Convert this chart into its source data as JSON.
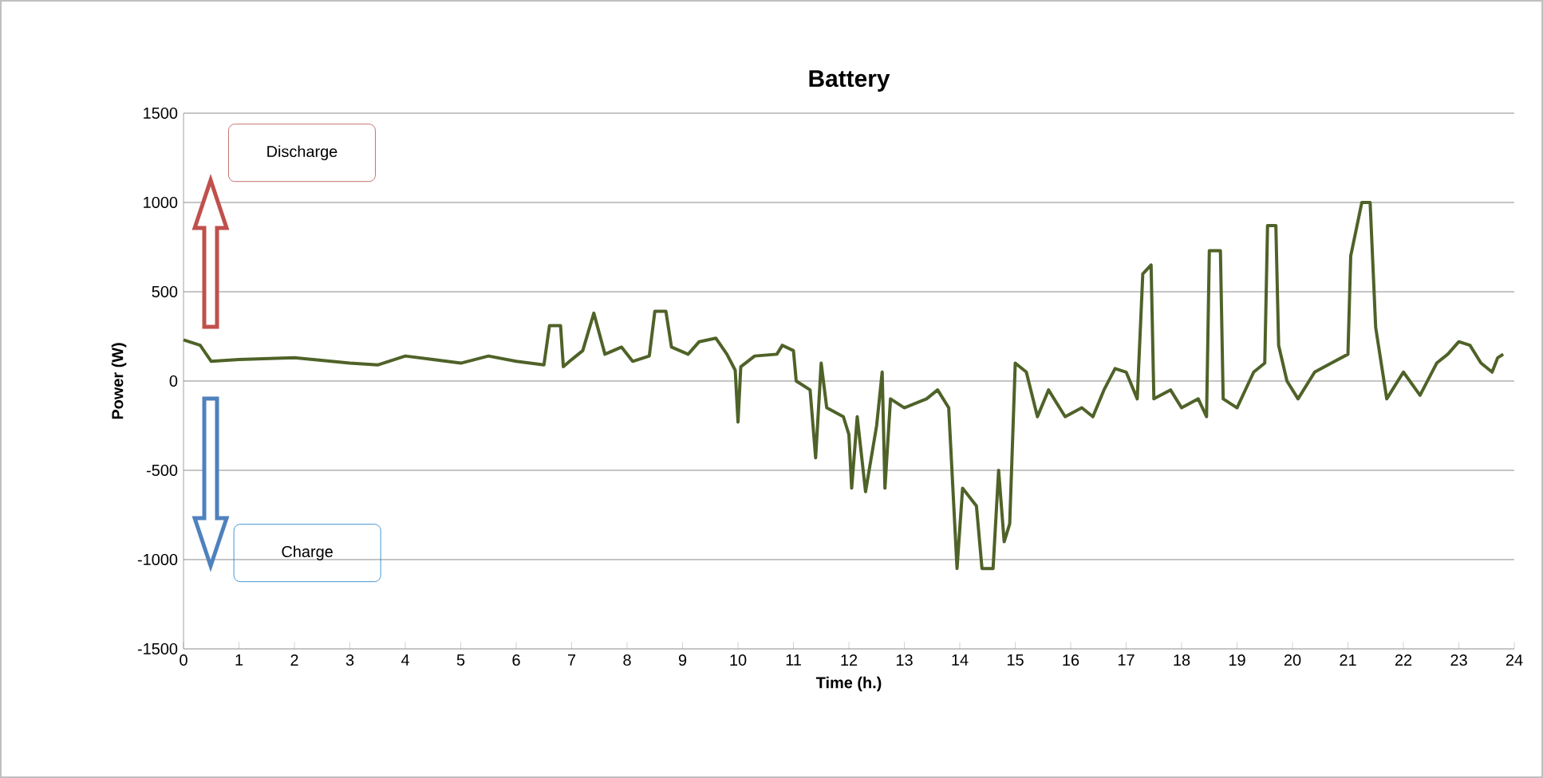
{
  "chart_data": {
    "type": "line",
    "title": "Battery",
    "xlabel": "Time (h.)",
    "ylabel": "Power (W)",
    "annotations": [
      "Discharge",
      "Charge"
    ],
    "x": [
      0,
      0.3,
      0.5,
      1.0,
      2,
      3,
      3.5,
      4,
      4.5,
      5,
      5.5,
      6,
      6.5,
      6.6,
      6.8,
      6.85,
      7.0,
      7.2,
      7.4,
      7.6,
      7.9,
      8.1,
      8.4,
      8.5,
      8.7,
      8.8,
      9.1,
      9.3,
      9.6,
      9.8,
      9.95,
      10.0,
      10.05,
      10.3,
      10.7,
      10.8,
      11.0,
      11.05,
      11.3,
      11.4,
      11.5,
      11.6,
      11.9,
      12.0,
      12.05,
      12.15,
      12.3,
      12.5,
      12.6,
      12.65,
      12.75,
      13.0,
      13.4,
      13.6,
      13.8,
      13.95,
      14.05,
      14.3,
      14.4,
      14.6,
      14.7,
      14.8,
      14.9,
      15.0,
      15.2,
      15.4,
      15.6,
      15.9,
      16.2,
      16.4,
      16.6,
      16.8,
      17.0,
      17.2,
      17.3,
      17.45,
      17.5,
      17.8,
      18.0,
      18.3,
      18.45,
      18.5,
      18.7,
      18.75,
      19.0,
      19.3,
      19.5,
      19.55,
      19.7,
      19.75,
      19.9,
      20.1,
      20.4,
      20.7,
      21.0,
      21.05,
      21.25,
      21.4,
      21.5,
      21.6,
      21.7,
      22.0,
      22.3,
      22.6,
      22.8,
      23.0,
      23.2,
      23.4,
      23.6,
      23.7,
      23.8
    ],
    "series": [
      {
        "color": "#4f6228",
        "values": [
          230,
          200,
          110,
          120,
          130,
          100,
          90,
          140,
          120,
          100,
          140,
          110,
          90,
          310,
          310,
          80,
          120,
          170,
          380,
          150,
          190,
          110,
          140,
          390,
          390,
          190,
          150,
          220,
          240,
          150,
          60,
          -230,
          80,
          140,
          150,
          200,
          170,
          0,
          -50,
          -430,
          100,
          -150,
          -200,
          -300,
          -600,
          -200,
          -620,
          -250,
          50,
          -600,
          -100,
          -150,
          -100,
          -50,
          -150,
          -1050,
          -600,
          -700,
          -1050,
          -1050,
          -500,
          -900,
          -800,
          100,
          50,
          -200,
          -50,
          -200,
          -150,
          -200,
          -50,
          70,
          50,
          -100,
          600,
          650,
          -100,
          -50,
          -150,
          -100,
          -200,
          730,
          730,
          -100,
          -150,
          50,
          100,
          870,
          870,
          200,
          0,
          -100,
          50,
          100,
          150,
          700,
          1000,
          1000,
          300,
          100,
          -100,
          50,
          -80,
          100,
          150,
          220,
          200,
          100,
          50,
          130,
          150
        ]
      }
    ],
    "xlim": [
      0,
      24
    ],
    "ylim": [
      -1500,
      1500
    ],
    "xticks": [
      0,
      1,
      2,
      3,
      4,
      5,
      6,
      7,
      8,
      9,
      10,
      11,
      12,
      13,
      14,
      15,
      16,
      17,
      18,
      19,
      20,
      21,
      22,
      23,
      24
    ],
    "yticks": [
      -1500,
      -1000,
      -500,
      0,
      500,
      1000,
      1500
    ],
    "grid": "y"
  }
}
